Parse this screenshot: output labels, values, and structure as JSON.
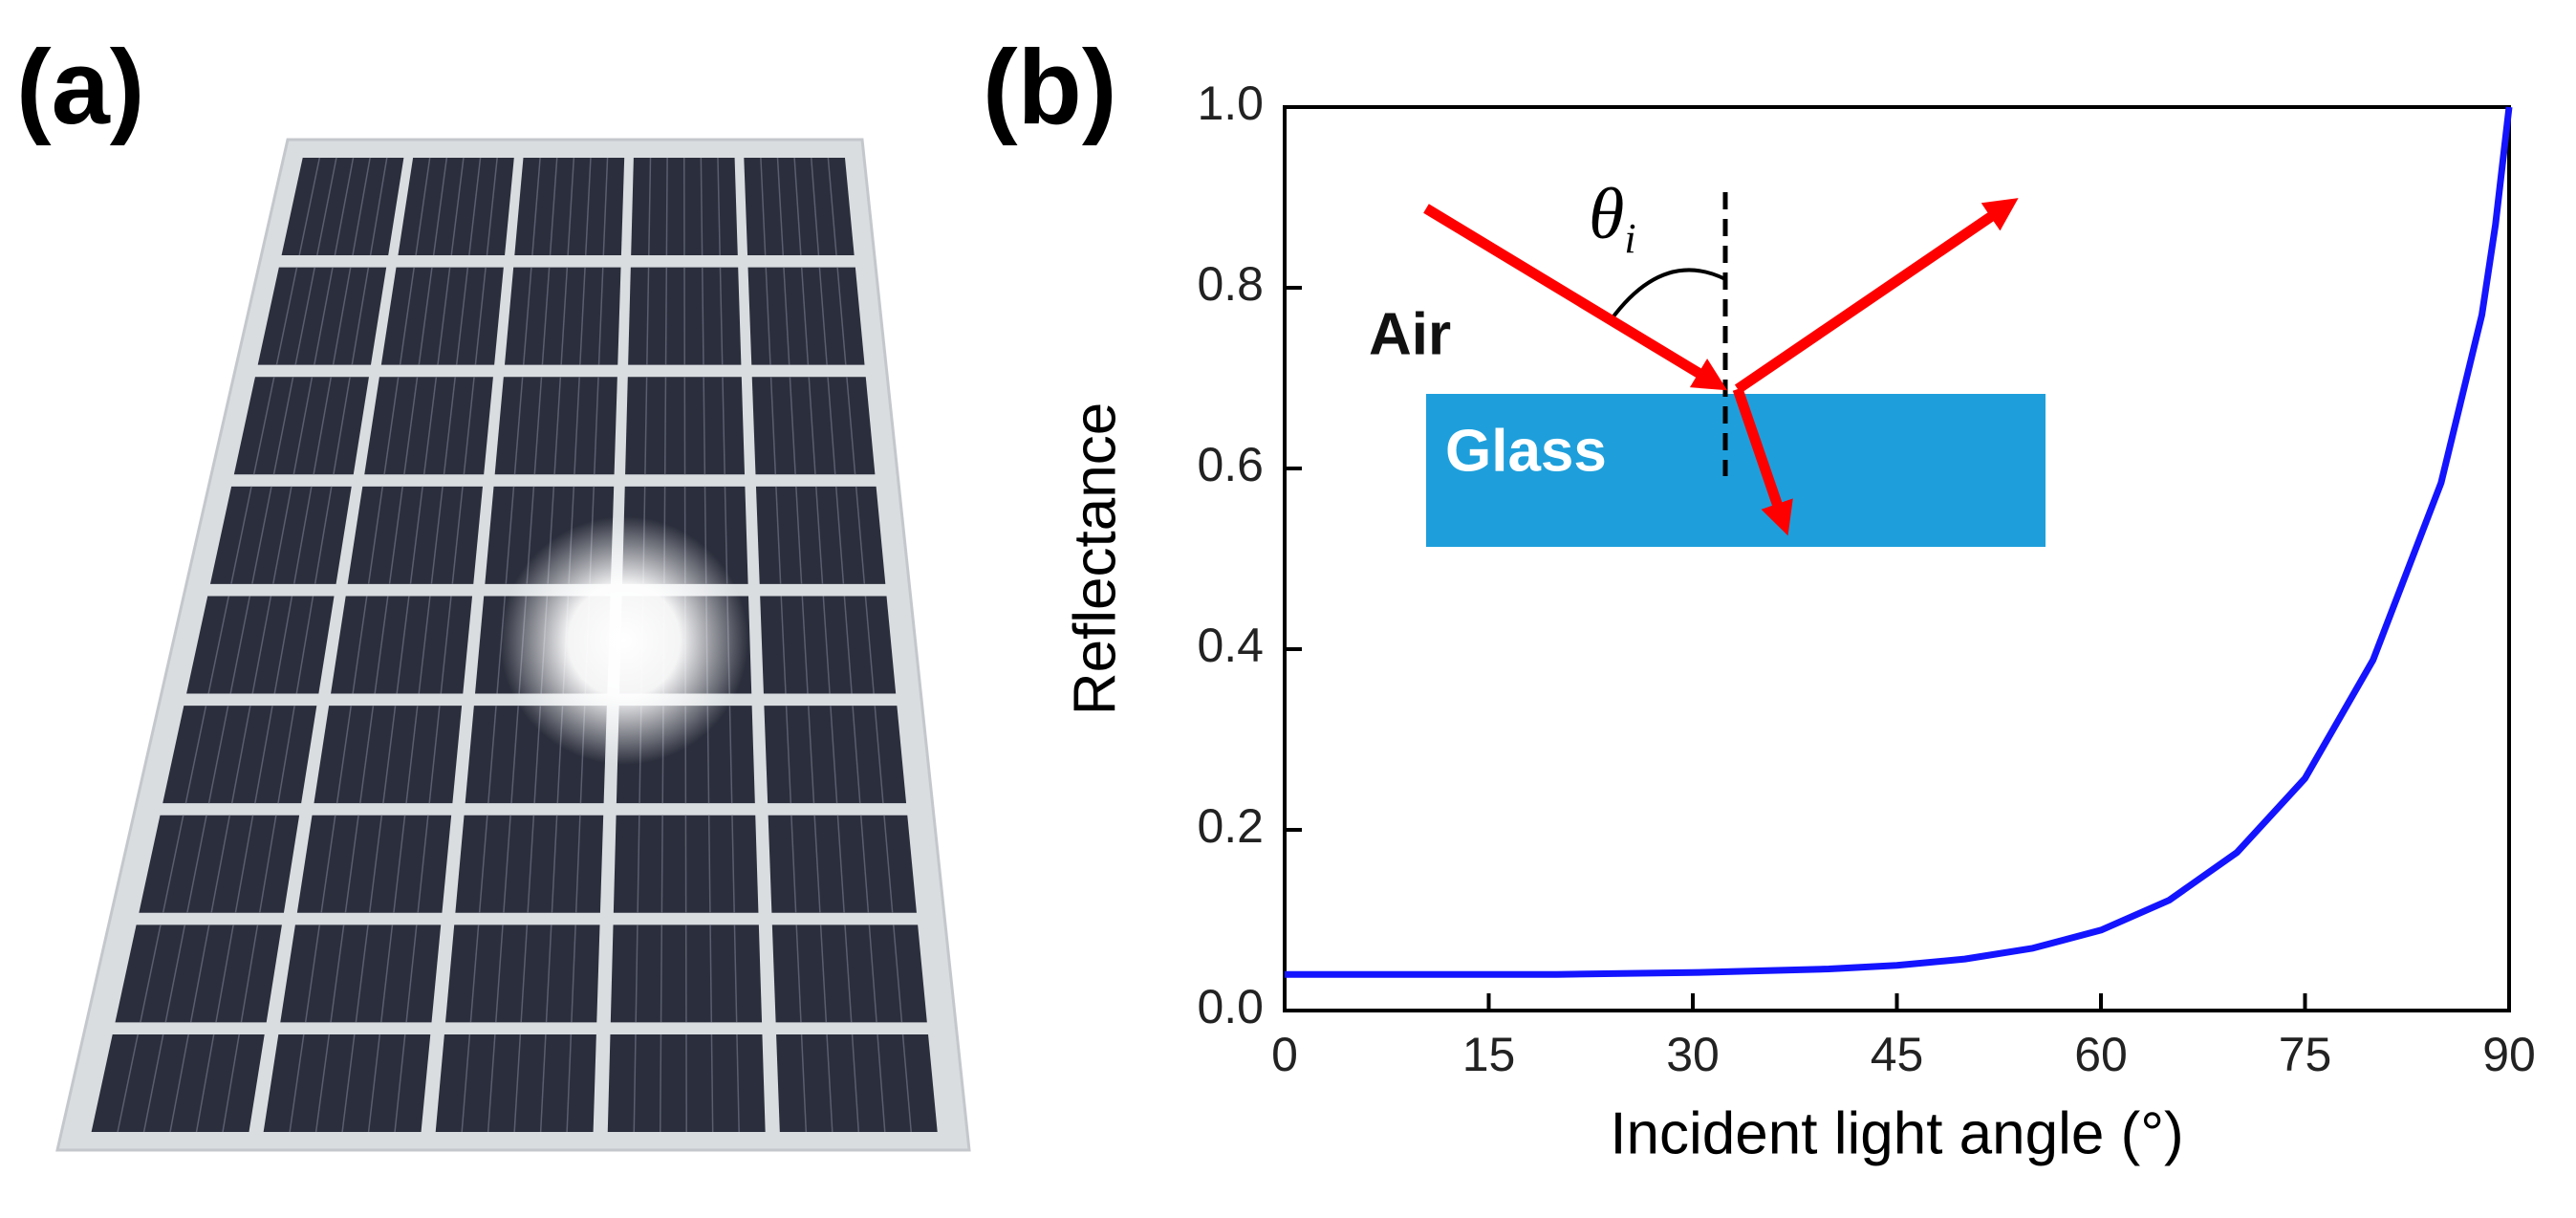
{
  "panel_labels": [
    "(a)",
    "(b)"
  ],
  "chart_data": {
    "type": "line",
    "xlabel": "Incident light angle (°)",
    "ylabel": "Reflectance",
    "x": [
      0,
      10,
      20,
      30,
      40,
      45,
      50,
      55,
      60,
      65,
      70,
      75,
      80,
      85,
      88,
      89,
      90
    ],
    "series": [
      {
        "name": "Reflectance",
        "color": "#1414ff",
        "values": [
          0.04,
          0.04,
          0.04,
          0.042,
          0.046,
          0.05,
          0.057,
          0.069,
          0.089,
          0.122,
          0.175,
          0.257,
          0.388,
          0.584,
          0.77,
          0.87,
          1.0
        ]
      }
    ],
    "xlim": [
      0,
      90
    ],
    "xticks": [
      0,
      15,
      30,
      45,
      60,
      75,
      90
    ],
    "ylim": [
      0,
      1
    ],
    "yticks": [
      {
        "value": 0,
        "label": "0.0"
      },
      {
        "value": 0.2,
        "label": "0.2"
      },
      {
        "value": 0.4,
        "label": "0.4"
      },
      {
        "value": 0.6,
        "label": "0.6"
      },
      {
        "value": 0.8,
        "label": "0.8"
      },
      {
        "value": 1,
        "label": "1.0"
      }
    ],
    "annotations": {
      "air": "Air",
      "glass": "Glass",
      "theta": "θ",
      "theta_subscript": "i"
    }
  }
}
